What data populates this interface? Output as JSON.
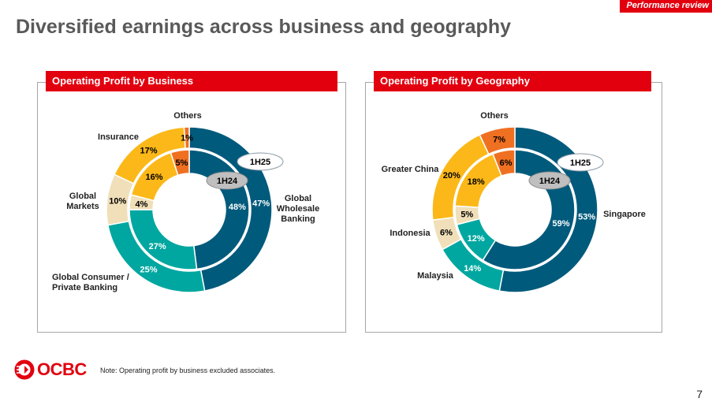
{
  "header": {
    "section_tag": "Performance review",
    "title": "Diversified earnings across business and geography"
  },
  "footer": {
    "logo_text": "OCBC",
    "note": "Note: Operating profit by business excluded associates.",
    "page_number": "7"
  },
  "colors": {
    "brand_red": "#e2000f",
    "dark_blue": "#005a7c",
    "teal": "#00a7a0",
    "beige": "#f0dfb8",
    "yellow": "#fbb818",
    "orange": "#f07021"
  },
  "chart_data": [
    {
      "type": "pie",
      "title": "Operating Profit by Business",
      "rings": {
        "outer": "1H25",
        "inner": "1H24"
      },
      "categories": [
        "Global Wholesale Banking",
        "Global Consumer / Private Banking",
        "Global Markets",
        "Insurance",
        "Others"
      ],
      "category_labels": [
        [
          "Global",
          "Wholesale",
          "Banking"
        ],
        [
          "Global Consumer /",
          "Private Banking"
        ],
        [
          "Global",
          "Markets"
        ],
        [
          "Insurance"
        ],
        [
          "Others"
        ]
      ],
      "series": [
        {
          "name": "1H25",
          "values": [
            47,
            25,
            10,
            17,
            1
          ]
        },
        {
          "name": "1H24",
          "values": [
            48,
            27,
            4,
            16,
            5
          ]
        }
      ]
    },
    {
      "type": "pie",
      "title": "Operating Profit by Geography",
      "rings": {
        "outer": "1H25",
        "inner": "1H24"
      },
      "categories": [
        "Singapore",
        "Malaysia",
        "Indonesia",
        "Greater China",
        "Others"
      ],
      "category_labels": [
        [
          "Singapore"
        ],
        [
          "Malaysia"
        ],
        [
          "Indonesia"
        ],
        [
          "Greater China"
        ],
        [
          "Others"
        ]
      ],
      "series": [
        {
          "name": "1H25",
          "values": [
            53,
            14,
            6,
            20,
            7
          ]
        },
        {
          "name": "1H24",
          "values": [
            59,
            12,
            5,
            18,
            6
          ]
        }
      ]
    }
  ]
}
